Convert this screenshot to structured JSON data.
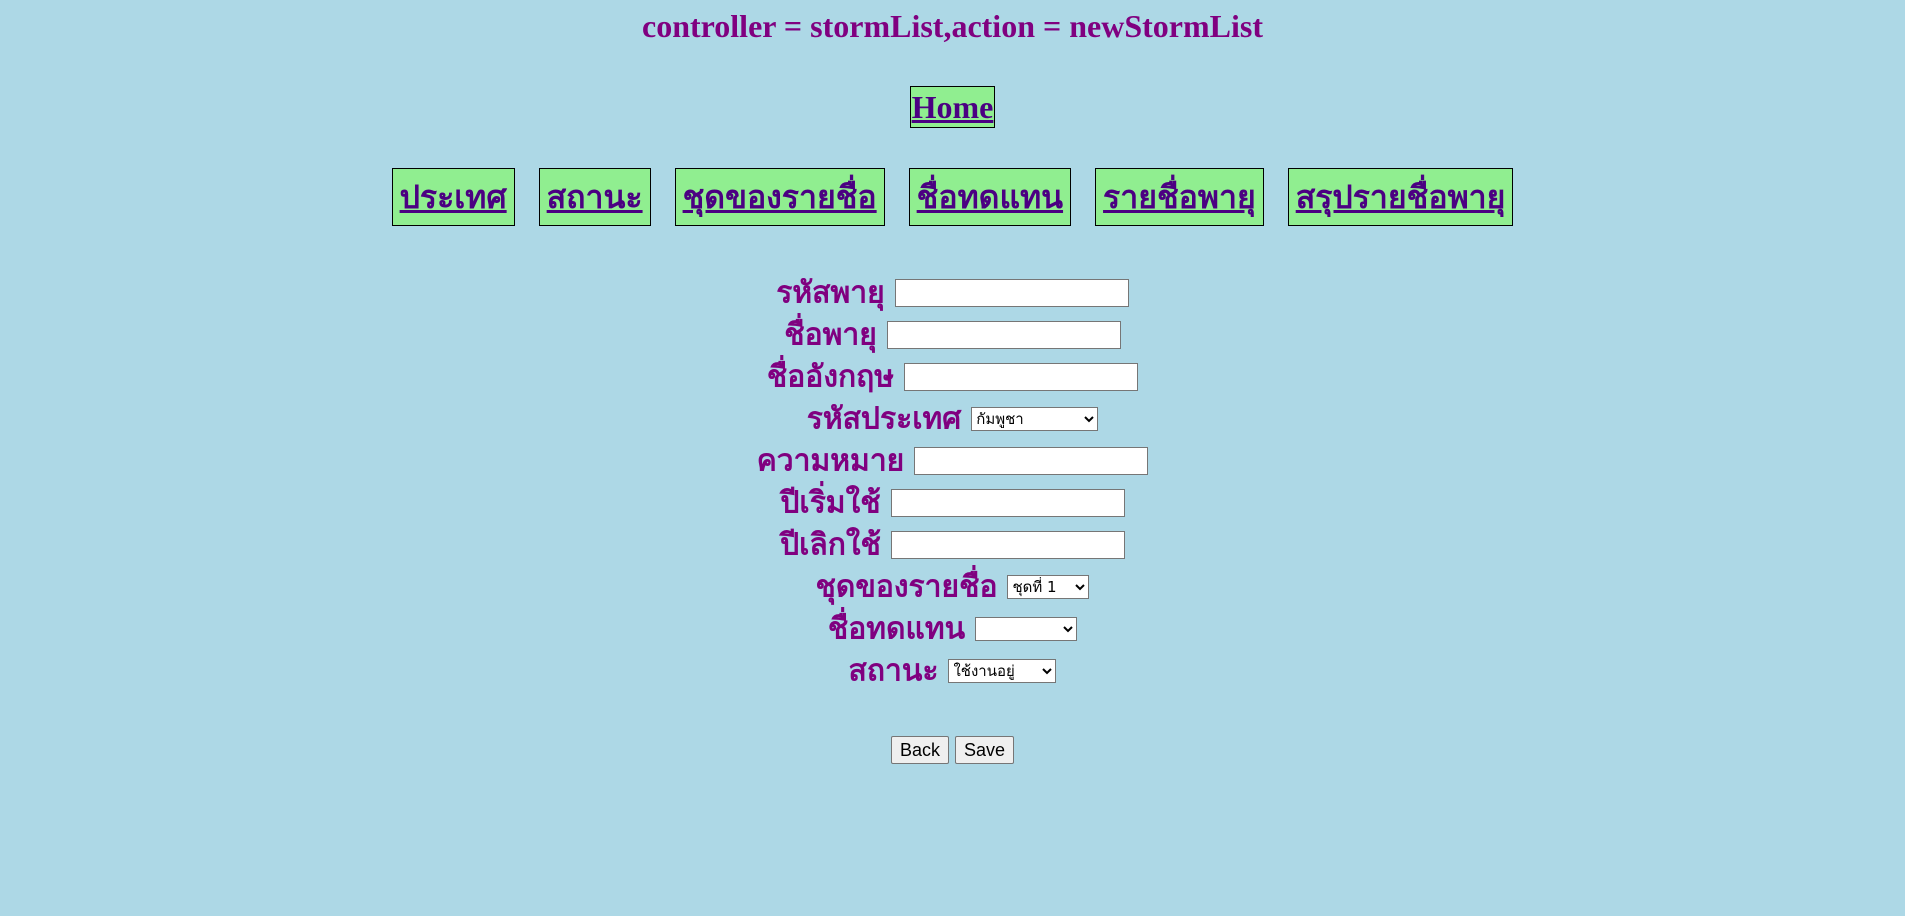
{
  "header": {
    "title": "controller = stormList,action = newStormList"
  },
  "home": {
    "label": "Home"
  },
  "nav": {
    "items": [
      {
        "label": "ประเทศ"
      },
      {
        "label": "สถานะ"
      },
      {
        "label": "ชุดของรายชื่อ"
      },
      {
        "label": "ชื่อทดแทน"
      },
      {
        "label": "รายชื่อพายุ"
      },
      {
        "label": "สรุปรายชื่อพายุ"
      }
    ]
  },
  "form": {
    "storm_code": {
      "label": "รหัสพายุ",
      "value": ""
    },
    "storm_name": {
      "label": "ชื่อพายุ",
      "value": ""
    },
    "english_name": {
      "label": "ชื่ออังกฤษ",
      "value": ""
    },
    "country_code": {
      "label": "รหัสประเทศ",
      "selected": "กัมพูชา"
    },
    "meaning": {
      "label": "ความหมาย",
      "value": ""
    },
    "start_year": {
      "label": "ปีเริ่มใช้",
      "value": ""
    },
    "end_year": {
      "label": "ปีเลิกใช้",
      "value": ""
    },
    "name_set": {
      "label": "ชุดของรายชื่อ",
      "selected": "ชุดที่ 1"
    },
    "replacement_name": {
      "label": "ชื่อทดแทน",
      "selected": ""
    },
    "status": {
      "label": "สถานะ",
      "selected": "ใช้งานอยู่"
    }
  },
  "actions": {
    "back_label": "Back",
    "save_label": "Save"
  },
  "colors": {
    "background": "#add8e6",
    "text": "#800080",
    "nav_button": "#90ee90",
    "link_text": "#4b0082"
  }
}
